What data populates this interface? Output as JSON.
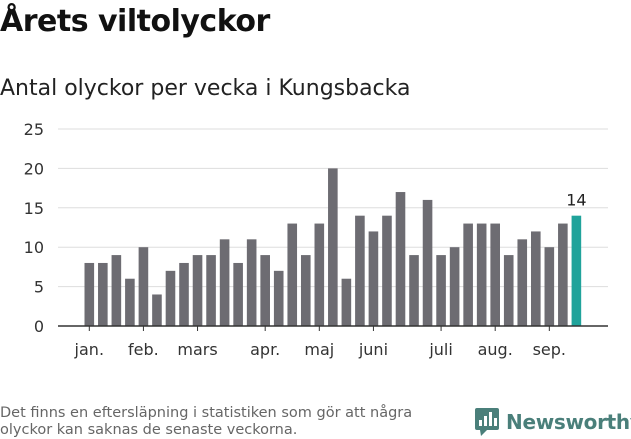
{
  "header": {
    "title": "Årets viltolyckor",
    "subtitle": "Antal olyckor per vecka i Kungsbacka"
  },
  "footer": {
    "note": "Det finns en eftersläpning i statistiken som gör att några olyckor kan saknas de senaste veckorna.",
    "brand": "Newsworthy"
  },
  "colors": {
    "bar": "#6d6c72",
    "highlight": "#20a39b",
    "grid": "#dddddd",
    "axis": "#333333",
    "brand": "#4a7f7a"
  },
  "icons": {
    "logo": "newsworthy-chart-bubble-icon"
  },
  "chart_data": {
    "type": "bar",
    "title": "Antal olyckor per vecka i Kungsbacka",
    "xlabel": "",
    "ylabel": "",
    "ylim": [
      0,
      25
    ],
    "yticks": [
      0,
      5,
      10,
      15,
      20,
      25
    ],
    "grid": true,
    "legend": "none",
    "values": [
      8,
      8,
      9,
      6,
      10,
      4,
      7,
      8,
      9,
      9,
      11,
      8,
      11,
      9,
      7,
      13,
      9,
      13,
      20,
      6,
      14,
      12,
      14,
      17,
      9,
      16,
      9,
      10,
      13,
      13,
      13,
      9,
      11,
      12,
      10,
      13,
      14
    ],
    "highlight_index": 36,
    "highlight_label": "14",
    "month_labels": [
      {
        "label": "jan.",
        "bar": 0
      },
      {
        "label": "feb.",
        "bar": 4
      },
      {
        "label": "mars",
        "bar": 8
      },
      {
        "label": "apr.",
        "bar": 13
      },
      {
        "label": "maj",
        "bar": 17
      },
      {
        "label": "juni",
        "bar": 21
      },
      {
        "label": "juli",
        "bar": 26
      },
      {
        "label": "aug.",
        "bar": 30
      },
      {
        "label": "sep.",
        "bar": 34
      }
    ]
  }
}
